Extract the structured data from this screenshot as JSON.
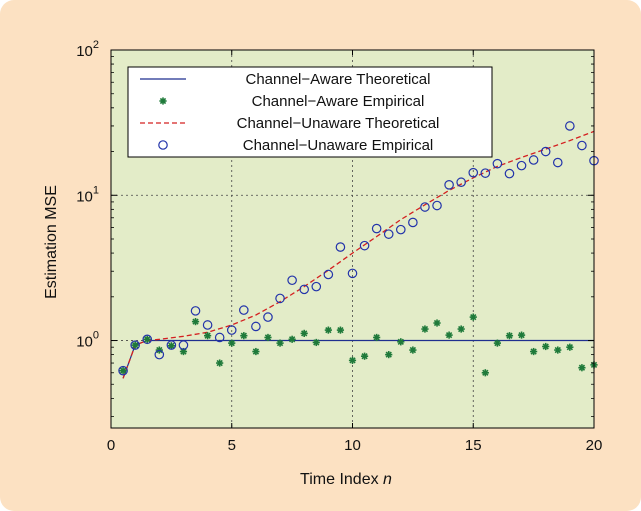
{
  "chart_data": {
    "type": "scatter",
    "xlabel_main": "Time Index ",
    "xlabel_var": "n",
    "ylabel": "Estimation MSE",
    "xlim": [
      0,
      20
    ],
    "ylim": [
      0.25,
      100
    ],
    "yscale": "log",
    "x_ticks": [
      0,
      5,
      10,
      15,
      20
    ],
    "y_ticks": [
      {
        "value": 1,
        "base": "10",
        "exp": "0"
      },
      {
        "value": 10,
        "base": "10",
        "exp": "1"
      },
      {
        "value": 100,
        "base": "10",
        "exp": "2"
      }
    ],
    "grid": true,
    "legend_position": "top-left",
    "colors": {
      "plot_background": "#e3ecc8",
      "figure_background": "#fce1c2",
      "aware_theoretical": "#1f2f8f",
      "aware_empirical": "#1f7a3a",
      "unaware_theoretical": "#d42020",
      "unaware_empirical": "#2233aa"
    },
    "series": [
      {
        "name": "Channel−Aware Theoretical",
        "style": "line",
        "x": [
          0.5,
          1,
          1.5,
          2,
          3,
          4,
          5,
          6,
          7,
          8,
          9,
          10,
          11,
          12,
          13,
          14,
          15,
          16,
          17,
          18,
          19,
          20
        ],
        "y": [
          0.55,
          0.93,
          1.0,
          1.0,
          1.0,
          1.0,
          1.0,
          1.0,
          1.0,
          1.0,
          1.0,
          1.0,
          1.0,
          1.0,
          1.0,
          1.0,
          1.0,
          1.0,
          1.0,
          1.0,
          1.0,
          1.0
        ]
      },
      {
        "name": "Channel−Aware Empirical",
        "style": "asterisk",
        "x": [
          0.5,
          1,
          1.5,
          2,
          2.5,
          3,
          3.5,
          4,
          4.5,
          5,
          5.5,
          6,
          6.5,
          7,
          7.5,
          8,
          8.5,
          9,
          9.5,
          10,
          10.5,
          11,
          11.5,
          12,
          12.5,
          13,
          13.5,
          14,
          14.5,
          15,
          15.5,
          16,
          16.5,
          17,
          17.5,
          18,
          18.5,
          19,
          19.5,
          20
        ],
        "y": [
          0.62,
          0.93,
          1.02,
          0.86,
          0.92,
          0.84,
          1.35,
          1.08,
          0.7,
          0.96,
          1.08,
          0.84,
          1.05,
          0.96,
          1.02,
          1.12,
          0.97,
          1.18,
          1.18,
          0.73,
          0.78,
          1.05,
          0.8,
          0.98,
          0.86,
          1.2,
          1.32,
          1.09,
          1.2,
          1.45,
          0.6,
          0.96,
          1.08,
          1.09,
          0.84,
          0.91,
          0.86,
          0.9,
          0.65,
          0.68
        ]
      },
      {
        "name": "Channel−Unaware Theoretical",
        "style": "dashed",
        "x": [
          0.5,
          1,
          1.5,
          2,
          3,
          4,
          5,
          6,
          7,
          8,
          9,
          10,
          11,
          12,
          13,
          14,
          15,
          16,
          17,
          18,
          19,
          20
        ],
        "y": [
          0.55,
          0.93,
          1.0,
          1.02,
          1.07,
          1.14,
          1.28,
          1.5,
          1.85,
          2.35,
          3.05,
          4.0,
          5.2,
          6.8,
          8.6,
          10.8,
          13.2,
          15.8,
          18.2,
          20.8,
          23.8,
          27.5
        ]
      },
      {
        "name": "Channel−Unaware Empirical",
        "style": "circle",
        "x": [
          0.5,
          1,
          1.5,
          2,
          2.5,
          3,
          3.5,
          4,
          4.5,
          5,
          5.5,
          6,
          6.5,
          7,
          7.5,
          8,
          8.5,
          9,
          9.5,
          10,
          10.5,
          11,
          11.5,
          12,
          12.5,
          13,
          13.5,
          14,
          14.5,
          15,
          15.5,
          16,
          16.5,
          17,
          17.5,
          18,
          18.5,
          19,
          19.5,
          20
        ],
        "y": [
          0.62,
          0.93,
          1.02,
          0.8,
          0.93,
          0.93,
          1.6,
          1.28,
          1.05,
          1.18,
          1.62,
          1.25,
          1.45,
          1.95,
          2.6,
          2.25,
          2.35,
          2.85,
          4.4,
          2.9,
          4.5,
          5.9,
          5.4,
          5.8,
          6.5,
          8.3,
          8.5,
          11.8,
          12.3,
          14.3,
          14.2,
          16.5,
          14.1,
          16.0,
          17.5,
          20.0,
          16.8,
          30.0,
          22.0,
          17.3
        ]
      }
    ]
  }
}
